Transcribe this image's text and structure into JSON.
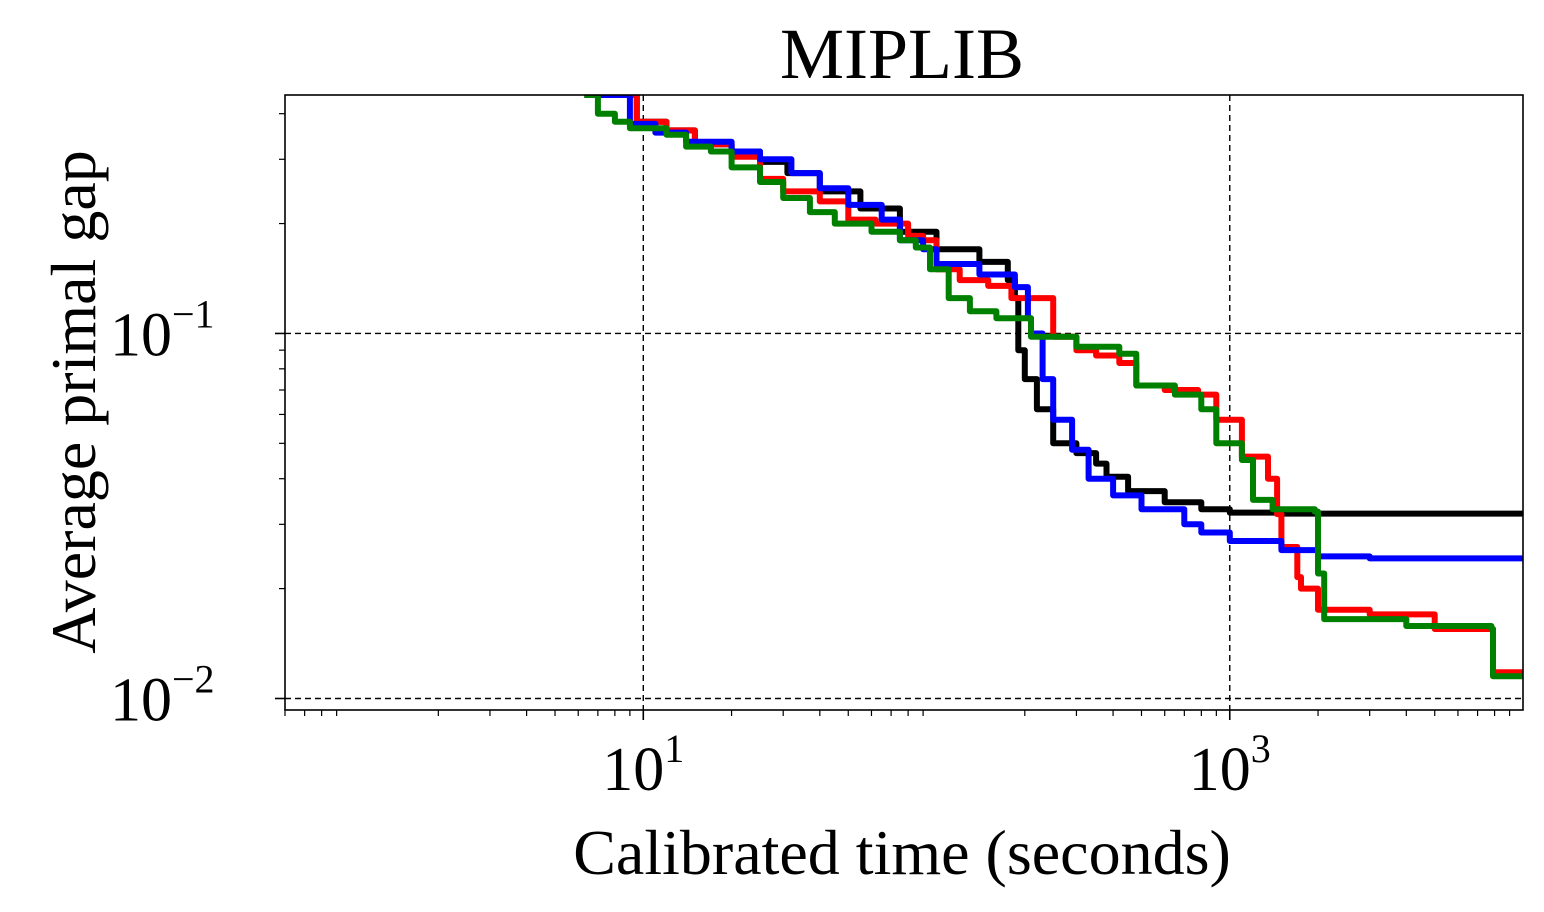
{
  "chart_data": {
    "type": "line",
    "title": "MIPLIB",
    "xlabel": "Calibrated time (seconds)",
    "ylabel": "Average primal gap",
    "x_scale": "log",
    "y_scale": "log",
    "xlim": [
      0.6,
      10000
    ],
    "ylim": [
      0.0093,
      0.45
    ],
    "grid": true,
    "x_ticks": [
      {
        "value": 10,
        "base": "10",
        "exp": "1"
      },
      {
        "value": 1000,
        "base": "10",
        "exp": "3"
      }
    ],
    "y_ticks": [
      {
        "value": 0.01,
        "base": "10",
        "exp": "−2"
      },
      {
        "value": 0.1,
        "base": "10",
        "exp": "−1"
      }
    ],
    "series": [
      {
        "color": "#000000",
        "points": [
          [
            6.3,
            0.45
          ],
          [
            9.5,
            0.38
          ],
          [
            12,
            0.36
          ],
          [
            15,
            0.33
          ],
          [
            20,
            0.315
          ],
          [
            25,
            0.295
          ],
          [
            31,
            0.275
          ],
          [
            40,
            0.245
          ],
          [
            55,
            0.22
          ],
          [
            75,
            0.19
          ],
          [
            100,
            0.17
          ],
          [
            140,
            0.157
          ],
          [
            175,
            0.14
          ],
          [
            185,
            0.125
          ],
          [
            190,
            0.09
          ],
          [
            200,
            0.075
          ],
          [
            220,
            0.062
          ],
          [
            250,
            0.05
          ],
          [
            300,
            0.047
          ],
          [
            350,
            0.044
          ],
          [
            380,
            0.0405
          ],
          [
            450,
            0.037
          ],
          [
            600,
            0.0345
          ],
          [
            800,
            0.033
          ],
          [
            1000,
            0.0323
          ],
          [
            1500,
            0.0321
          ],
          [
            10000,
            0.0321
          ]
        ]
      },
      {
        "color": "#ff0000",
        "points": [
          [
            6.3,
            0.45
          ],
          [
            9.5,
            0.38
          ],
          [
            12,
            0.36
          ],
          [
            15,
            0.33
          ],
          [
            20,
            0.305
          ],
          [
            25,
            0.265
          ],
          [
            30,
            0.245
          ],
          [
            40,
            0.23
          ],
          [
            50,
            0.205
          ],
          [
            62,
            0.2
          ],
          [
            80,
            0.185
          ],
          [
            90,
            0.18
          ],
          [
            100,
            0.15
          ],
          [
            120,
            0.14
          ],
          [
            150,
            0.135
          ],
          [
            180,
            0.125
          ],
          [
            250,
            0.098
          ],
          [
            300,
            0.09
          ],
          [
            350,
            0.087
          ],
          [
            420,
            0.083
          ],
          [
            480,
            0.072
          ],
          [
            600,
            0.07
          ],
          [
            780,
            0.068
          ],
          [
            900,
            0.058
          ],
          [
            1100,
            0.046
          ],
          [
            1350,
            0.04
          ],
          [
            1450,
            0.032
          ],
          [
            1500,
            0.026
          ],
          [
            1700,
            0.0215
          ],
          [
            1750,
            0.02
          ],
          [
            2000,
            0.0175
          ],
          [
            3000,
            0.017
          ],
          [
            5000,
            0.0155
          ],
          [
            7800,
            0.0155
          ],
          [
            7900,
            0.0118
          ],
          [
            10000,
            0.0118
          ]
        ]
      },
      {
        "color": "#0000ff",
        "points": [
          [
            6.3,
            0.45
          ],
          [
            9,
            0.375
          ],
          [
            11,
            0.355
          ],
          [
            14,
            0.335
          ],
          [
            20,
            0.315
          ],
          [
            25,
            0.3
          ],
          [
            32,
            0.275
          ],
          [
            40,
            0.25
          ],
          [
            50,
            0.225
          ],
          [
            65,
            0.205
          ],
          [
            75,
            0.18
          ],
          [
            90,
            0.17
          ],
          [
            100,
            0.155
          ],
          [
            140,
            0.145
          ],
          [
            185,
            0.134
          ],
          [
            205,
            0.11
          ],
          [
            210,
            0.1
          ],
          [
            230,
            0.075
          ],
          [
            250,
            0.058
          ],
          [
            290,
            0.048
          ],
          [
            330,
            0.04
          ],
          [
            400,
            0.036
          ],
          [
            500,
            0.033
          ],
          [
            700,
            0.03
          ],
          [
            800,
            0.0285
          ],
          [
            1000,
            0.027
          ],
          [
            1500,
            0.0255
          ],
          [
            2000,
            0.0245
          ],
          [
            3000,
            0.0242
          ],
          [
            10000,
            0.0242
          ]
        ]
      },
      {
        "color": "#008000",
        "points": [
          [
            6.3,
            0.45
          ],
          [
            7,
            0.4
          ],
          [
            8,
            0.38
          ],
          [
            9,
            0.365
          ],
          [
            12,
            0.35
          ],
          [
            14,
            0.325
          ],
          [
            17,
            0.315
          ],
          [
            20,
            0.285
          ],
          [
            25,
            0.26
          ],
          [
            30,
            0.235
          ],
          [
            37,
            0.215
          ],
          [
            45,
            0.2
          ],
          [
            60,
            0.19
          ],
          [
            75,
            0.18
          ],
          [
            85,
            0.172
          ],
          [
            95,
            0.15
          ],
          [
            110,
            0.125
          ],
          [
            130,
            0.115
          ],
          [
            160,
            0.11
          ],
          [
            210,
            0.098
          ],
          [
            300,
            0.092
          ],
          [
            420,
            0.088
          ],
          [
            480,
            0.072
          ],
          [
            650,
            0.068
          ],
          [
            800,
            0.062
          ],
          [
            900,
            0.05
          ],
          [
            1100,
            0.045
          ],
          [
            1200,
            0.035
          ],
          [
            1400,
            0.033
          ],
          [
            1950,
            0.0325
          ],
          [
            2000,
            0.022
          ],
          [
            2100,
            0.0165
          ],
          [
            4000,
            0.0158
          ],
          [
            7800,
            0.0155
          ],
          [
            7900,
            0.0115
          ],
          [
            10000,
            0.0115
          ]
        ]
      }
    ]
  }
}
